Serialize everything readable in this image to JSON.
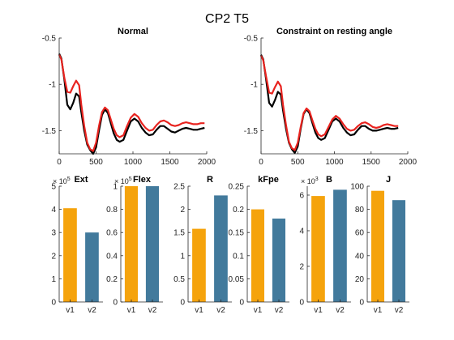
{
  "figure": {
    "title": "CP2 T5"
  },
  "colors": {
    "black": "#000000",
    "red": "#e8231f",
    "orange": "#f5a30c",
    "blue": "#427a9c",
    "axis": "#262626"
  },
  "chart_data": [
    {
      "id": "normal",
      "type": "line",
      "title": "Normal",
      "xlim": [
        0,
        2000
      ],
      "ylim": [
        -1.75,
        -0.5
      ],
      "xticks": [
        "0",
        "500",
        "1000",
        "1500",
        "2000"
      ],
      "xtick_values": [
        0,
        500,
        1000,
        1500,
        2000
      ],
      "yticks": [
        "-0.5",
        "-1",
        "-1.5"
      ],
      "ytick_values": [
        -0.5,
        -1,
        -1.5
      ],
      "series": [
        {
          "color": "black",
          "x": [
            0,
            30,
            70,
            110,
            150,
            190,
            230,
            270,
            300,
            340,
            380,
            420,
            460,
            500,
            540,
            580,
            620,
            660,
            700,
            740,
            780,
            820,
            870,
            920,
            970,
            1020,
            1070,
            1120,
            1170,
            1220,
            1270,
            1320,
            1370,
            1420,
            1470,
            1520,
            1570,
            1620,
            1670,
            1720,
            1770,
            1820,
            1870,
            1920,
            1970
          ],
          "y": [
            -0.67,
            -0.72,
            -0.95,
            -1.22,
            -1.27,
            -1.2,
            -1.1,
            -1.13,
            -1.3,
            -1.5,
            -1.65,
            -1.71,
            -1.75,
            -1.68,
            -1.5,
            -1.33,
            -1.27,
            -1.31,
            -1.42,
            -1.53,
            -1.6,
            -1.62,
            -1.6,
            -1.5,
            -1.4,
            -1.37,
            -1.4,
            -1.47,
            -1.52,
            -1.55,
            -1.54,
            -1.49,
            -1.45,
            -1.45,
            -1.48,
            -1.51,
            -1.52,
            -1.5,
            -1.48,
            -1.47,
            -1.48,
            -1.49,
            -1.49,
            -1.48,
            -1.47
          ]
        },
        {
          "color": "red",
          "x": [
            0,
            30,
            70,
            110,
            150,
            190,
            230,
            270,
            300,
            340,
            380,
            420,
            460,
            500,
            540,
            580,
            620,
            660,
            700,
            740,
            780,
            820,
            870,
            920,
            970,
            1020,
            1070,
            1120,
            1170,
            1220,
            1270,
            1320,
            1370,
            1420,
            1470,
            1520,
            1570,
            1620,
            1670,
            1720,
            1770,
            1820,
            1870,
            1920,
            1970
          ],
          "y": [
            -0.68,
            -0.73,
            -0.93,
            -1.08,
            -1.09,
            -1.02,
            -0.96,
            -1.01,
            -1.22,
            -1.45,
            -1.63,
            -1.7,
            -1.72,
            -1.63,
            -1.45,
            -1.3,
            -1.25,
            -1.28,
            -1.38,
            -1.48,
            -1.55,
            -1.57,
            -1.55,
            -1.45,
            -1.36,
            -1.32,
            -1.35,
            -1.42,
            -1.47,
            -1.5,
            -1.49,
            -1.44,
            -1.4,
            -1.39,
            -1.41,
            -1.44,
            -1.45,
            -1.44,
            -1.42,
            -1.41,
            -1.42,
            -1.43,
            -1.43,
            -1.42,
            -1.42
          ]
        }
      ]
    },
    {
      "id": "constraint",
      "type": "line",
      "title": "Constraint on resting angle",
      "xlim": [
        0,
        2000
      ],
      "ylim": [
        -1.75,
        -0.5
      ],
      "xticks": [
        "0",
        "500",
        "1000",
        "1500",
        "2000"
      ],
      "xtick_values": [
        0,
        500,
        1000,
        1500,
        2000
      ],
      "yticks": [
        "-0.5",
        "-1",
        "-1.5"
      ],
      "ytick_values": [
        -0.5,
        -1,
        -1.5
      ],
      "series": [
        {
          "color": "black",
          "x": [
            0,
            30,
            70,
            110,
            150,
            190,
            230,
            270,
            300,
            340,
            380,
            420,
            460,
            500,
            540,
            580,
            620,
            660,
            700,
            740,
            780,
            820,
            870,
            920,
            970,
            1020,
            1070,
            1120,
            1170,
            1220,
            1270,
            1320,
            1370,
            1420,
            1470,
            1520,
            1570,
            1620,
            1670,
            1720,
            1770,
            1820,
            1870
          ],
          "y": [
            -0.68,
            -0.73,
            -0.95,
            -1.2,
            -1.24,
            -1.17,
            -1.08,
            -1.11,
            -1.28,
            -1.48,
            -1.63,
            -1.7,
            -1.74,
            -1.67,
            -1.48,
            -1.32,
            -1.27,
            -1.31,
            -1.42,
            -1.52,
            -1.58,
            -1.6,
            -1.58,
            -1.49,
            -1.4,
            -1.37,
            -1.4,
            -1.47,
            -1.52,
            -1.55,
            -1.54,
            -1.49,
            -1.45,
            -1.45,
            -1.48,
            -1.5,
            -1.5,
            -1.49,
            -1.48,
            -1.47,
            -1.48,
            -1.48,
            -1.47
          ]
        },
        {
          "color": "red",
          "x": [
            0,
            30,
            70,
            110,
            150,
            190,
            230,
            270,
            300,
            340,
            380,
            420,
            460,
            500,
            540,
            580,
            620,
            660,
            700,
            740,
            780,
            820,
            870,
            920,
            970,
            1020,
            1070,
            1120,
            1170,
            1220,
            1270,
            1320,
            1370,
            1420,
            1470,
            1520,
            1570,
            1620,
            1670,
            1720,
            1770,
            1820,
            1870
          ],
          "y": [
            -0.69,
            -0.74,
            -0.92,
            -1.09,
            -1.1,
            -1.03,
            -0.97,
            -1.02,
            -1.22,
            -1.44,
            -1.62,
            -1.69,
            -1.71,
            -1.63,
            -1.46,
            -1.31,
            -1.26,
            -1.29,
            -1.39,
            -1.48,
            -1.54,
            -1.56,
            -1.54,
            -1.46,
            -1.38,
            -1.34,
            -1.37,
            -1.43,
            -1.48,
            -1.5,
            -1.49,
            -1.45,
            -1.42,
            -1.41,
            -1.43,
            -1.46,
            -1.47,
            -1.46,
            -1.44,
            -1.43,
            -1.44,
            -1.45,
            -1.45
          ]
        }
      ]
    },
    {
      "id": "ext",
      "type": "bar",
      "title": "Ext",
      "categories": [
        "v1",
        "v2"
      ],
      "values": [
        4.05,
        3.0
      ],
      "ylim": [
        0,
        5
      ],
      "yticks": [
        "0",
        "1",
        "2",
        "3",
        "4",
        "5"
      ],
      "ytick_values": [
        0,
        1,
        2,
        3,
        4,
        5
      ],
      "multiplier": "× 10",
      "multiplier_exp": "5"
    },
    {
      "id": "flex",
      "type": "bar",
      "title": "Flex",
      "categories": [
        "v1",
        "v2"
      ],
      "values": [
        1.0,
        1.0
      ],
      "ylim": [
        0,
        1
      ],
      "yticks": [
        "0",
        "0.2",
        "0.4",
        "0.6",
        "0.8",
        "1"
      ],
      "ytick_values": [
        0,
        0.2,
        0.4,
        0.6,
        0.8,
        1
      ],
      "multiplier": "× 10",
      "multiplier_exp": "5"
    },
    {
      "id": "r",
      "type": "bar",
      "title": "R",
      "categories": [
        "v1",
        "v2"
      ],
      "values": [
        1.58,
        2.3
      ],
      "ylim": [
        0,
        2.5
      ],
      "yticks": [
        "0",
        "0.5",
        "1",
        "1.5",
        "2",
        "2.5"
      ],
      "ytick_values": [
        0,
        0.5,
        1,
        1.5,
        2,
        2.5
      ]
    },
    {
      "id": "kfpe",
      "type": "bar",
      "title": "kFpe",
      "categories": [
        "v1",
        "v2"
      ],
      "values": [
        0.2,
        0.18
      ],
      "ylim": [
        0,
        0.25
      ],
      "yticks": [
        "0",
        "0.05",
        "0.1",
        "0.15",
        "0.2",
        "0.25"
      ],
      "ytick_values": [
        0,
        0.05,
        0.1,
        0.15,
        0.2,
        0.25
      ]
    },
    {
      "id": "b",
      "type": "bar",
      "title": "B",
      "categories": [
        "v1",
        "v2"
      ],
      "values": [
        5.95,
        6.3
      ],
      "ylim": [
        0,
        6.5
      ],
      "yticks": [
        "0",
        "2",
        "4",
        "6"
      ],
      "ytick_values": [
        0,
        2,
        4,
        6
      ],
      "multiplier": "× 10",
      "multiplier_exp": "3"
    },
    {
      "id": "j",
      "type": "bar",
      "title": "J",
      "categories": [
        "v1",
        "v2"
      ],
      "values": [
        96,
        88
      ],
      "ylim": [
        0,
        100
      ],
      "yticks": [
        "0",
        "20",
        "40",
        "60",
        "80",
        "100"
      ],
      "ytick_values": [
        0,
        20,
        40,
        60,
        80,
        100
      ]
    }
  ]
}
